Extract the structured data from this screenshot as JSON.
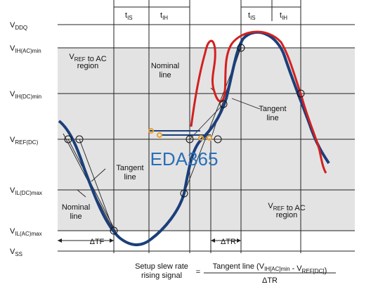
{
  "levels": [
    {
      "main": "V",
      "sub": "DDQ"
    },
    {
      "main": "V",
      "sub": "IH(AC)min"
    },
    {
      "main": "V",
      "sub": "IH(DC)min"
    },
    {
      "main": "V",
      "sub": "REF(DC)"
    },
    {
      "main": "V",
      "sub": "IL(DC)max"
    },
    {
      "main": "V",
      "sub": "IL(AC)max"
    },
    {
      "main": "V",
      "sub": "SS"
    }
  ],
  "timing_left": [
    {
      "main": "t",
      "sub": "IS"
    },
    {
      "main": "t",
      "sub": "IH"
    }
  ],
  "timing_right": [
    {
      "main": "t",
      "sub": "IS"
    },
    {
      "main": "t",
      "sub": "IH"
    }
  ],
  "region_top": {
    "pre": "V",
    "sub": "REF",
    "post": " to AC",
    "line2": "region"
  },
  "region_bottom": {
    "pre": "V",
    "sub": "REF",
    "post": " to AC",
    "line2": "region"
  },
  "nominal_top": [
    "Nominal",
    "line"
  ],
  "tangent_top": [
    "Tangent",
    "line"
  ],
  "tangent_left": [
    "Tangent",
    "line"
  ],
  "nominal_left": [
    "Nominal",
    "line"
  ],
  "delta_tf": "ΔTF",
  "delta_tr": "ΔTR",
  "watermark": "EDA365",
  "formula": {
    "label": [
      "Setup slew rate",
      "rising signal"
    ],
    "equals": "=",
    "numerator": {
      "pre": "Tangent line (V",
      "sub1": "IH[AC]min",
      "mid": " - V",
      "sub2": "REF[DC]",
      "post": ")"
    },
    "denominator": "ΔTR"
  }
}
